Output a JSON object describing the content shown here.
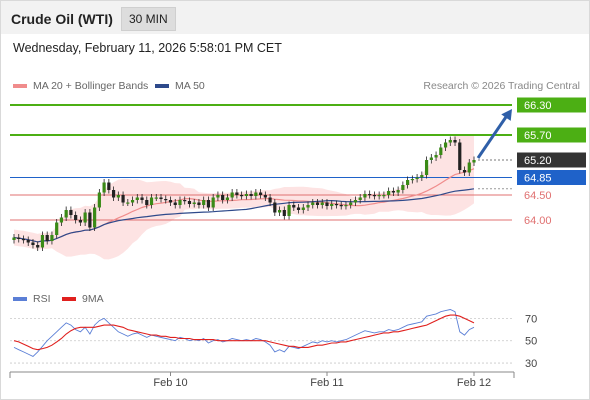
{
  "header": {
    "instrument": "Crude Oil (WTI)",
    "interval": "30 MIN",
    "datetime": "Wednesday, February 11, 2026 5:58:01 PM CET"
  },
  "legend": {
    "ma20": "MA 20 + Bollinger Bands",
    "ma20_color": "#f08c8c",
    "ma50": "MA 50",
    "ma50_color": "#2e4a8b",
    "credit": "Research © 2026 Trading Central"
  },
  "rsi_legend": {
    "rsi": "RSI",
    "rsi_color": "#5b7fd6",
    "ma9": "9MA",
    "ma9_color": "#e0201e"
  },
  "chart_data": [
    {
      "type": "candlestick",
      "title": "Crude Oil (WTI)",
      "x_ticks": [
        "Feb 10",
        "Feb 11",
        "Feb 12"
      ],
      "levels": [
        {
          "value": 66.3,
          "label": "66.30",
          "kind": "resistance",
          "color": "#4caf14"
        },
        {
          "value": 65.7,
          "label": "65.70",
          "kind": "resistance",
          "color": "#4caf14"
        },
        {
          "value": 65.2,
          "label": "65.20",
          "kind": "last",
          "color": "#333333"
        },
        {
          "value": 64.85,
          "label": "64.85",
          "kind": "pivot",
          "color": "#1f62c9"
        },
        {
          "value": 64.5,
          "label": "64.50",
          "kind": "support",
          "color": "#e07070"
        },
        {
          "value": 64.0,
          "label": "64.00",
          "kind": "support",
          "color": "#e07070"
        }
      ],
      "y_range": [
        62.8,
        66.6
      ],
      "closes": [
        63.65,
        63.62,
        63.6,
        63.55,
        63.5,
        63.45,
        63.7,
        63.58,
        63.7,
        63.95,
        64.05,
        64.2,
        64.1,
        64.0,
        63.95,
        64.15,
        63.85,
        64.25,
        64.55,
        64.75,
        64.6,
        64.45,
        64.5,
        64.35,
        64.35,
        64.4,
        64.45,
        64.4,
        64.3,
        64.45,
        64.45,
        64.42,
        64.4,
        64.35,
        64.3,
        64.4,
        64.38,
        64.32,
        64.35,
        64.3,
        64.4,
        64.25,
        64.45,
        64.5,
        64.4,
        64.45,
        64.55,
        64.5,
        64.48,
        64.52,
        64.48,
        64.55,
        64.5,
        64.45,
        64.35,
        64.15,
        64.2,
        64.08,
        64.3,
        64.25,
        64.2,
        64.25,
        64.3,
        64.35,
        64.3,
        64.35,
        64.28,
        64.32,
        64.3,
        64.28,
        64.3,
        64.35,
        64.4,
        64.45,
        64.52,
        64.5,
        64.48,
        64.5,
        64.5,
        64.58,
        64.55,
        64.6,
        64.7,
        64.8,
        64.82,
        64.85,
        64.9,
        65.2,
        65.25,
        65.3,
        65.45,
        65.55,
        65.6,
        65.55,
        65.0,
        64.95,
        65.15,
        65.2
      ],
      "ma20_band": {
        "last": 64.9
      },
      "ma50": {
        "last": 64.62
      }
    },
    {
      "type": "line",
      "title": "RSI",
      "y_ticks": [
        70,
        50,
        30
      ],
      "y_range": [
        22,
        82
      ],
      "series": [
        {
          "name": "RSI",
          "values": [
            44,
            42,
            40,
            38,
            36,
            40,
            45,
            50,
            54,
            58,
            62,
            66,
            64,
            60,
            58,
            62,
            56,
            64,
            68,
            70,
            66,
            62,
            58,
            56,
            54,
            56,
            57,
            55,
            53,
            55,
            54,
            53,
            52,
            51,
            50,
            53,
            52,
            50,
            51,
            50,
            52,
            48,
            50,
            51,
            49,
            50,
            52,
            51,
            50,
            51,
            50,
            52,
            51,
            49,
            46,
            40,
            42,
            40,
            45,
            44,
            43,
            45,
            47,
            49,
            48,
            50,
            49,
            50,
            49,
            50,
            51,
            53,
            55,
            57,
            59,
            58,
            57,
            58,
            58,
            60,
            59,
            60,
            62,
            64,
            65,
            66,
            67,
            72,
            73,
            74,
            76,
            77,
            78,
            76,
            58,
            55,
            60,
            62
          ]
        },
        {
          "name": "9MA",
          "values": [
            50,
            49,
            47,
            45,
            43,
            42,
            43,
            44,
            46,
            49,
            52,
            56,
            59,
            61,
            62,
            62,
            62,
            62,
            63,
            64,
            64,
            64,
            63,
            62,
            60,
            59,
            58,
            57,
            56,
            55,
            55,
            54,
            54,
            53,
            53,
            52,
            52,
            52,
            51,
            51,
            51,
            51,
            51,
            50,
            50,
            50,
            50,
            50,
            50,
            50,
            50,
            50,
            50,
            50,
            49,
            48,
            47,
            46,
            45,
            45,
            44,
            44,
            44,
            45,
            46,
            46,
            47,
            48,
            48,
            49,
            49,
            50,
            51,
            52,
            53,
            54,
            55,
            56,
            57,
            57,
            58,
            58,
            59,
            60,
            61,
            62,
            63,
            64,
            66,
            68,
            70,
            72,
            73,
            73,
            72,
            70,
            68,
            66
          ]
        }
      ]
    }
  ]
}
